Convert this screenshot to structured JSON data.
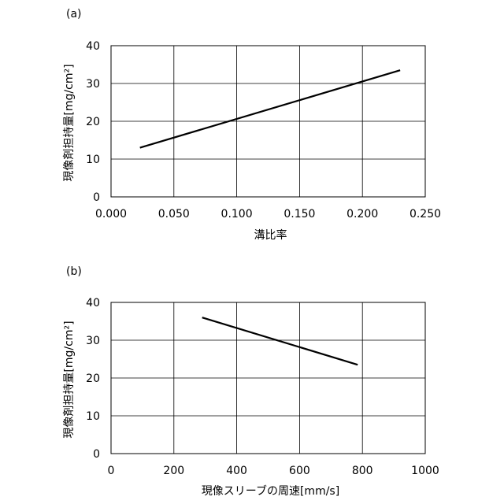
{
  "chart_data": [
    {
      "type": "line",
      "panel_label": "(a)",
      "xlabel": "溝比率",
      "ylabel": "現像剤担持量[mg/cm²]",
      "xlim": [
        0,
        0.25
      ],
      "ylim": [
        0,
        40
      ],
      "xticks": [
        "0.000",
        "0.050",
        "0.100",
        "0.150",
        "0.200",
        "0.250"
      ],
      "yticks": [
        "0",
        "10",
        "20",
        "30",
        "40"
      ],
      "grid": true,
      "series": [
        {
          "x": [
            0.023,
            0.23
          ],
          "y": [
            13.0,
            33.5
          ]
        }
      ]
    },
    {
      "type": "line",
      "panel_label": "(b)",
      "xlabel": "現像スリーブの周速[mm/s]",
      "ylabel": "現像剤担持量[mg/cm²]",
      "xlim": [
        0,
        1000
      ],
      "ylim": [
        0,
        40
      ],
      "xticks": [
        "0",
        "200",
        "400",
        "600",
        "800",
        "1000"
      ],
      "yticks": [
        "0",
        "10",
        "20",
        "30",
        "40"
      ],
      "grid": true,
      "series": [
        {
          "x": [
            290,
            785
          ],
          "y": [
            36.0,
            23.5
          ]
        }
      ]
    }
  ]
}
